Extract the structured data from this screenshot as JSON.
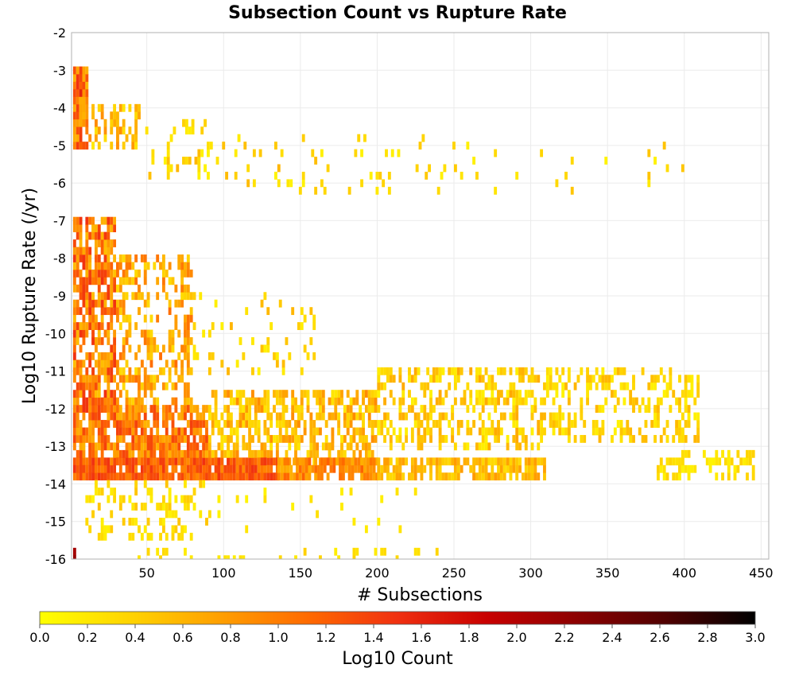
{
  "chart_data": {
    "type": "heatmap",
    "title": "Subsection Count vs Rupture Rate",
    "xlabel": "# Subsections",
    "ylabel": "Log10 Rupture Rate (/yr)",
    "xlim": [
      1,
      455
    ],
    "ylim": [
      -16,
      -2
    ],
    "x_ticks": [
      50,
      100,
      150,
      200,
      250,
      300,
      350,
      400,
      450
    ],
    "y_ticks": [
      -2,
      -3,
      -4,
      -5,
      -6,
      -7,
      -8,
      -9,
      -10,
      -11,
      -12,
      -13,
      -14,
      -15,
      -16
    ],
    "grid": true,
    "bin_width_x": 2,
    "bin_height_y": 0.2,
    "colorbar": {
      "label": "Log10 Count",
      "range": [
        0.0,
        3.0
      ],
      "ticks": [
        "0.0",
        "0.2",
        "0.4",
        "0.6",
        "0.8",
        "1.0",
        "1.2",
        "1.4",
        "1.6",
        "1.8",
        "2.0",
        "2.2",
        "2.4",
        "2.6",
        "2.8",
        "3.0"
      ],
      "colors": [
        "#ffff00",
        "#ffd400",
        "#ffa000",
        "#ff6a00",
        "#f03010",
        "#c80000",
        "#8c0000",
        "#500000",
        "#000000"
      ]
    },
    "regions": [
      {
        "x": [
          2,
          12
        ],
        "y": [
          -5.0,
          -3.0
        ],
        "log_count": [
          0.6,
          1.5
        ],
        "density": 0.9
      },
      {
        "x": [
          12,
          45
        ],
        "y": [
          -5.0,
          -4.0
        ],
        "log_count": [
          0.2,
          0.9
        ],
        "density": 0.5
      },
      {
        "x": [
          45,
          95
        ],
        "y": [
          -5.8,
          -4.4
        ],
        "log_count": [
          0.1,
          0.6
        ],
        "density": 0.15
      },
      {
        "x": [
          95,
          250
        ],
        "y": [
          -6.2,
          -4.8
        ],
        "log_count": [
          0.1,
          0.6
        ],
        "density": 0.08
      },
      {
        "x": [
          250,
          400
        ],
        "y": [
          -6.2,
          -5.0
        ],
        "log_count": [
          0.1,
          0.5
        ],
        "density": 0.05
      },
      {
        "x": [
          2,
          30
        ],
        "y": [
          -12.0,
          -7.0
        ],
        "log_count": [
          0.5,
          1.5
        ],
        "density": 0.75
      },
      {
        "x": [
          30,
          80
        ],
        "y": [
          -12.0,
          -8.0
        ],
        "log_count": [
          0.3,
          1.1
        ],
        "density": 0.45
      },
      {
        "x": [
          80,
          160
        ],
        "y": [
          -11.0,
          -9.0
        ],
        "log_count": [
          0.1,
          0.6
        ],
        "density": 0.15
      },
      {
        "x": [
          2,
          90
        ],
        "y": [
          -13.4,
          -12.0
        ],
        "log_count": [
          0.6,
          1.4
        ],
        "density": 0.8
      },
      {
        "x": [
          90,
          200
        ],
        "y": [
          -13.4,
          -11.6
        ],
        "log_count": [
          0.2,
          0.9
        ],
        "density": 0.6
      },
      {
        "x": [
          200,
          310
        ],
        "y": [
          -13.0,
          -11.0
        ],
        "log_count": [
          0.1,
          0.7
        ],
        "density": 0.45
      },
      {
        "x": [
          310,
          410
        ],
        "y": [
          -12.8,
          -11.0
        ],
        "log_count": [
          0.1,
          0.6
        ],
        "density": 0.4
      },
      {
        "x": [
          2,
          135
        ],
        "y": [
          -13.8,
          -13.4
        ],
        "log_count": [
          0.9,
          1.5
        ],
        "density": 0.95
      },
      {
        "x": [
          135,
          200
        ],
        "y": [
          -13.8,
          -13.4
        ],
        "log_count": [
          0.6,
          1.2
        ],
        "density": 0.9
      },
      {
        "x": [
          200,
          310
        ],
        "y": [
          -13.8,
          -13.4
        ],
        "log_count": [
          0.3,
          0.8
        ],
        "density": 0.75
      },
      {
        "x": [
          380,
          445
        ],
        "y": [
          -13.8,
          -13.2
        ],
        "log_count": [
          0.1,
          0.4
        ],
        "density": 0.35
      },
      {
        "x": [
          10,
          90
        ],
        "y": [
          -15.4,
          -13.8
        ],
        "log_count": [
          0.1,
          0.5
        ],
        "density": 0.3
      },
      {
        "x": [
          90,
          225
        ],
        "y": [
          -15.2,
          -14.2
        ],
        "log_count": [
          0.1,
          0.3
        ],
        "density": 0.05
      },
      {
        "x": [
          40,
          250
        ],
        "y": [
          -16.0,
          -15.8
        ],
        "log_count": [
          0.1,
          0.4
        ],
        "density": 0.15
      }
    ],
    "cells": [
      {
        "x": 2,
        "y": -3.0,
        "log_count": 1.3
      },
      {
        "x": 4,
        "y": -3.4,
        "log_count": 1.5
      },
      {
        "x": 6,
        "y": -3.6,
        "log_count": 1.6
      },
      {
        "x": 4,
        "y": -4.0,
        "log_count": 1.4
      },
      {
        "x": 2,
        "y": -15.8,
        "log_count": 2.1
      },
      {
        "x": 2,
        "y": -16.0,
        "log_count": 2.2
      }
    ]
  }
}
